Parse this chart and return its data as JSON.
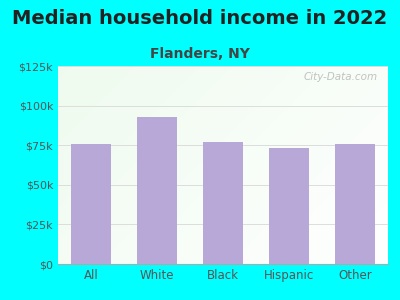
{
  "title": "Median household income in 2022",
  "subtitle": "Flanders, NY",
  "categories": [
    "All",
    "White",
    "Black",
    "Hispanic",
    "Other"
  ],
  "values": [
    76000,
    93000,
    77000,
    73000,
    76000
  ],
  "bar_color": "#b8a8d8",
  "ylim": [
    0,
    125000
  ],
  "yticks": [
    0,
    25000,
    50000,
    75000,
    100000,
    125000
  ],
  "ytick_labels": [
    "$0",
    "$25k",
    "$50k",
    "$75k",
    "$100k",
    "$125k"
  ],
  "background_outer": "#00ffff",
  "title_fontsize": 14,
  "subtitle_fontsize": 10,
  "watermark": "City-Data.com",
  "title_color": "#222222",
  "subtitle_color": "#444444",
  "tick_color": "#555555",
  "grid_color": "#dddddd",
  "plot_bg_left": "#d8eeda",
  "plot_bg_right": "#f0f8ff"
}
